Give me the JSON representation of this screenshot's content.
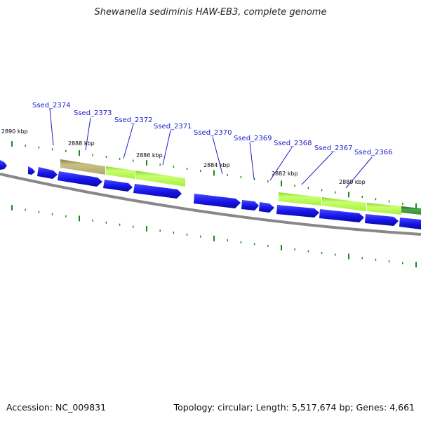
{
  "title": "Shewanella sediminis HAW-EB3, complete genome",
  "footer": {
    "accession": "Accession: NC_009831",
    "summary": "Topology: circular; Length: 5,517,674 bp; Genes: 4,661"
  },
  "colors": {
    "forward_gene": "#1414e8",
    "feature_light": "#aaf53c",
    "feature_olive": "#b8b070",
    "feature_dark": "#2e8b2e",
    "backbone": "#888888",
    "tick": "#1a8a1a",
    "label": "#1a1acc"
  },
  "kbp_labels": [
    {
      "text": "2890 kbp",
      "pos": 2890
    },
    {
      "text": "2888 kbp",
      "pos": 2888
    },
    {
      "text": "2886 kbp",
      "pos": 2886
    },
    {
      "text": "2884 kbp",
      "pos": 2884
    },
    {
      "text": "2882 kbp",
      "pos": 2882
    },
    {
      "text": "2880 kbp",
      "pos": 2880
    }
  ],
  "gene_labels": [
    {
      "text": "Ssed_2374"
    },
    {
      "text": "Ssed_2373"
    },
    {
      "text": "Ssed_2372"
    },
    {
      "text": "Ssed_2371"
    },
    {
      "text": "Ssed_2370"
    },
    {
      "text": "Ssed_2369"
    },
    {
      "text": "Ssed_2368"
    },
    {
      "text": "Ssed_2367"
    },
    {
      "text": "Ssed_2366"
    }
  ]
}
